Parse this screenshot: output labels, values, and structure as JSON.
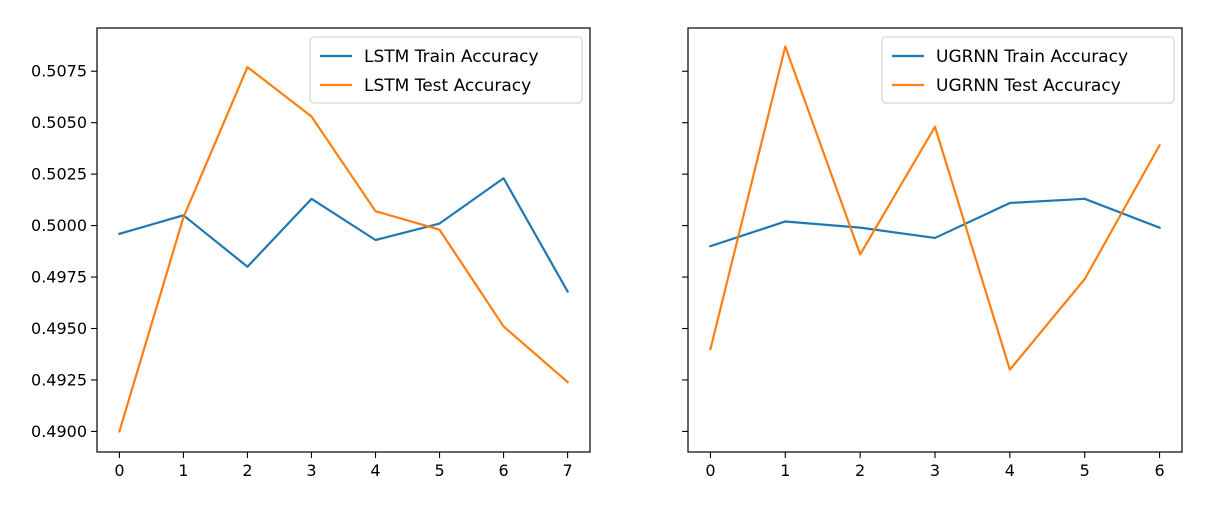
{
  "chart_data": [
    {
      "type": "line",
      "title": "",
      "xlabel": "",
      "ylabel": "",
      "x": [
        0,
        1,
        2,
        3,
        4,
        5,
        6,
        7
      ],
      "xlim": [
        -0.35,
        7.35
      ],
      "ylim": [
        0.489,
        0.5096
      ],
      "xticks": [
        "0",
        "1",
        "2",
        "3",
        "4",
        "5",
        "6",
        "7"
      ],
      "yticks": [
        0.49,
        0.4925,
        0.495,
        0.4975,
        0.5,
        0.5025,
        0.505,
        0.5075
      ],
      "ytick_labels": [
        "0.4900",
        "0.4925",
        "0.4950",
        "0.4975",
        "0.5000",
        "0.5025",
        "0.5050",
        "0.5075"
      ],
      "grid": false,
      "legend_position": "top-right",
      "series": [
        {
          "name": "LSTM Train Accuracy",
          "color": "#1f77b4",
          "values": [
            0.4996,
            0.5005,
            0.498,
            0.5013,
            0.4993,
            0.5001,
            0.5023,
            0.4968
          ]
        },
        {
          "name": "LSTM Test Accuracy",
          "color": "#ff7f0e",
          "values": [
            0.49,
            0.5004,
            0.5077,
            0.5053,
            0.5007,
            0.4998,
            0.4951,
            0.4924
          ]
        }
      ]
    },
    {
      "type": "line",
      "title": "",
      "xlabel": "",
      "ylabel": "",
      "x": [
        0,
        1,
        2,
        3,
        4,
        5,
        6
      ],
      "xlim": [
        -0.3,
        6.3
      ],
      "ylim": [
        0.489,
        0.5096
      ],
      "xticks": [
        "0",
        "1",
        "2",
        "3",
        "4",
        "5",
        "6"
      ],
      "yticks": [
        0.49,
        0.4925,
        0.495,
        0.4975,
        0.5,
        0.5025,
        0.505,
        0.5075
      ],
      "shared_y": true,
      "grid": false,
      "legend_position": "top-right",
      "series": [
        {
          "name": "UGRNN Train Accuracy",
          "color": "#1f77b4",
          "values": [
            0.499,
            0.5002,
            0.4999,
            0.4994,
            0.5011,
            0.5013,
            0.4999
          ]
        },
        {
          "name": "UGRNN Test Accuracy",
          "color": "#ff7f0e",
          "values": [
            0.494,
            0.5087,
            0.4986,
            0.5048,
            0.493,
            0.4974,
            0.5039
          ]
        }
      ]
    }
  ]
}
